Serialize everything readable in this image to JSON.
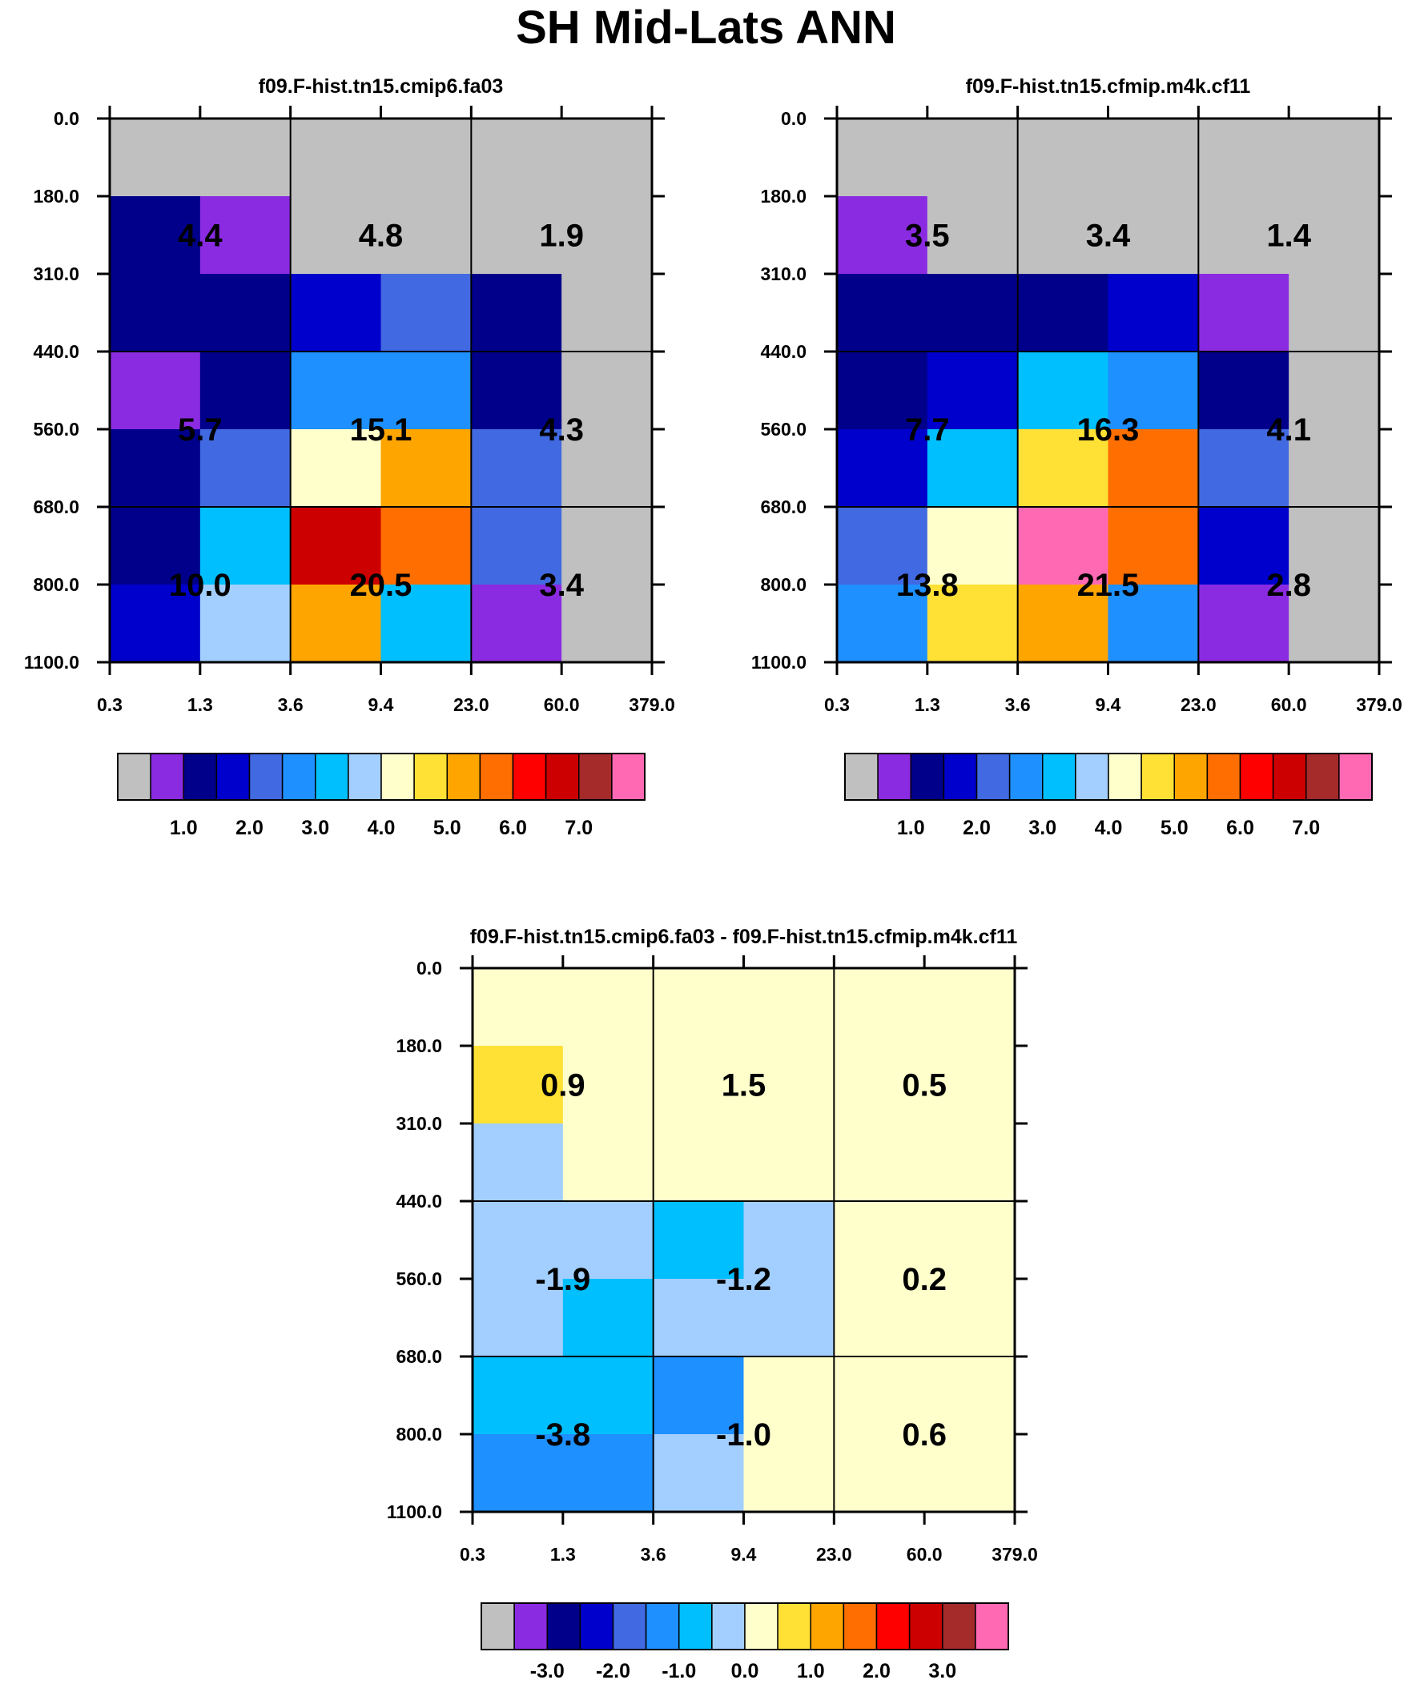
{
  "title": "SH Mid-Lats ANN",
  "x_tick_labels": [
    "0.3",
    "1.3",
    "3.6",
    "9.4",
    "23.0",
    "60.0",
    "379.0"
  ],
  "y_tick_labels": [
    "0.0",
    "180.0",
    "310.0",
    "440.0",
    "560.0",
    "680.0",
    "800.0",
    "1100.0"
  ],
  "colors": {
    "missing": "#c0c0c0",
    "palette": [
      "#c0c0c0",
      "#8a2be2",
      "#00008b",
      "#0000cd",
      "#4169e1",
      "#1e90ff",
      "#00bfff",
      "#a2cfff",
      "#ffffcc",
      "#ffe135",
      "#ffa500",
      "#ff6e00",
      "#ff0000",
      "#cc0000",
      "#a52a2a",
      "#ff69b4"
    ]
  },
  "chart_data": [
    {
      "type": "heatmap",
      "title": "f09.F-hist.tn15.cmip6.fa03",
      "x_edges": [
        "0.3",
        "1.3",
        "3.6",
        "9.4",
        "23.0",
        "60.0",
        "379.0"
      ],
      "y_edges": [
        "0.0",
        "180.0",
        "310.0",
        "440.0",
        "560.0",
        "680.0",
        "800.0",
        "1100.0"
      ],
      "cells": [
        [
          0,
          0,
          0,
          0,
          0,
          0
        ],
        [
          2,
          1,
          0,
          0,
          0,
          0
        ],
        [
          2,
          2,
          3,
          4,
          2,
          0
        ],
        [
          1,
          2,
          5,
          5,
          2,
          0
        ],
        [
          2,
          4,
          8,
          10,
          4,
          0
        ],
        [
          2,
          6,
          13,
          11,
          4,
          0
        ],
        [
          3,
          7,
          10,
          6,
          1,
          0
        ]
      ],
      "summary_values": [
        [
          "4.4",
          "4.8",
          "1.9"
        ],
        [
          "5.7",
          "15.1",
          "4.3"
        ],
        [
          "10.0",
          "20.5",
          "3.4"
        ]
      ],
      "colorbar_labels": [
        "1.0",
        "2.0",
        "3.0",
        "4.0",
        "5.0",
        "6.0",
        "7.0"
      ]
    },
    {
      "type": "heatmap",
      "title": "f09.F-hist.tn15.cfmip.m4k.cf11",
      "x_edges": [
        "0.3",
        "1.3",
        "3.6",
        "9.4",
        "23.0",
        "60.0",
        "379.0"
      ],
      "y_edges": [
        "0.0",
        "180.0",
        "310.0",
        "440.0",
        "560.0",
        "680.0",
        "800.0",
        "1100.0"
      ],
      "cells": [
        [
          0,
          0,
          0,
          0,
          0,
          0
        ],
        [
          1,
          0,
          0,
          0,
          0,
          0
        ],
        [
          2,
          2,
          2,
          3,
          1,
          0
        ],
        [
          2,
          3,
          6,
          5,
          2,
          0
        ],
        [
          3,
          6,
          9,
          11,
          4,
          0
        ],
        [
          4,
          8,
          15,
          11,
          3,
          0
        ],
        [
          5,
          9,
          10,
          5,
          1,
          0
        ]
      ],
      "summary_values": [
        [
          "3.5",
          "3.4",
          "1.4"
        ],
        [
          "7.7",
          "16.3",
          "4.1"
        ],
        [
          "13.8",
          "21.5",
          "2.8"
        ]
      ],
      "colorbar_labels": [
        "1.0",
        "2.0",
        "3.0",
        "4.0",
        "5.0",
        "6.0",
        "7.0"
      ]
    },
    {
      "type": "heatmap",
      "title": "f09.F-hist.tn15.cmip6.fa03 - f09.F-hist.tn15.cfmip.m4k.cf11",
      "x_edges": [
        "0.3",
        "1.3",
        "3.6",
        "9.4",
        "23.0",
        "60.0",
        "379.0"
      ],
      "y_edges": [
        "0.0",
        "180.0",
        "310.0",
        "440.0",
        "560.0",
        "680.0",
        "800.0",
        "1100.0"
      ],
      "cells": [
        [
          8,
          8,
          8,
          8,
          8,
          8
        ],
        [
          9,
          8,
          8,
          8,
          8,
          8
        ],
        [
          7,
          8,
          8,
          8,
          8,
          8
        ],
        [
          7,
          7,
          6,
          7,
          8,
          8
        ],
        [
          7,
          6,
          7,
          7,
          8,
          8
        ],
        [
          6,
          6,
          5,
          8,
          8,
          8
        ],
        [
          5,
          5,
          7,
          8,
          8,
          8
        ]
      ],
      "summary_values": [
        [
          "0.9",
          "1.5",
          "0.5"
        ],
        [
          "-1.9",
          "-1.2",
          "0.2"
        ],
        [
          "-3.8",
          "-1.0",
          "0.6"
        ]
      ],
      "colorbar_labels": [
        "-3.0",
        "-2.0",
        "-1.0",
        "0.0",
        "1.0",
        "2.0",
        "3.0"
      ]
    }
  ]
}
